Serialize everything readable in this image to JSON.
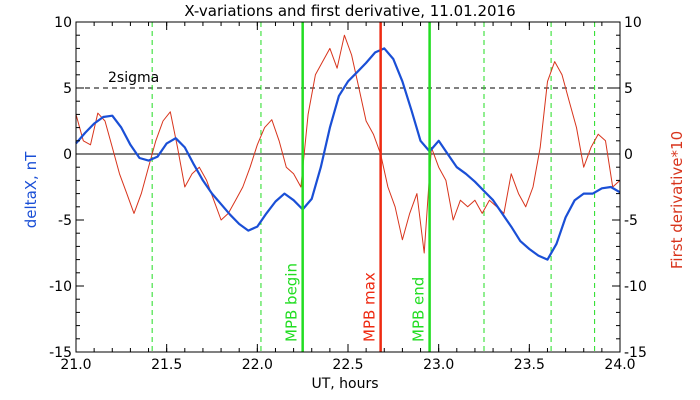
{
  "chart_data": {
    "type": "line",
    "title": "X-variations and first derivative, 11.01.2016",
    "xlabel": "UT, hours",
    "ylabel_left": "deltaX, nT",
    "ylabel_right": "First derivative*10",
    "xlim": [
      21.0,
      24.0
    ],
    "ylim": [
      -15,
      10
    ],
    "x_ticks": [
      21.0,
      21.5,
      22.0,
      22.5,
      23.0,
      23.5,
      24.0
    ],
    "x_tick_labels": [
      "21.0",
      "21.5",
      "22.0",
      "22.5",
      "23.0",
      "23.5",
      "24.0"
    ],
    "y_ticks": [
      -15,
      -10,
      -5,
      0,
      5,
      10
    ],
    "y_tick_labels": [
      "-15",
      "-10",
      "-5",
      "0",
      "5",
      "10"
    ],
    "colors": {
      "deltaX": "#1a4fd6",
      "derivative": "#d8341c",
      "mpb": "#22dd22",
      "max": "#ee2a12",
      "threshold": "#000000"
    },
    "threshold": {
      "label": "2sigma",
      "value": 5
    },
    "dashed_verticals": [
      21.42,
      22.02,
      23.25,
      23.62,
      23.86
    ],
    "markers": [
      {
        "label": "MPB begin",
        "x": 22.25,
        "color": "#22dd22"
      },
      {
        "label": "MPB max",
        "x": 22.68,
        "color": "#ee2a12"
      },
      {
        "label": "MPB end",
        "x": 22.95,
        "color": "#22dd22"
      }
    ],
    "series": [
      {
        "key": "deltaX",
        "x": [
          21.0,
          21.05,
          21.1,
          21.15,
          21.2,
          21.25,
          21.3,
          21.35,
          21.4,
          21.45,
          21.5,
          21.55,
          21.6,
          21.65,
          21.7,
          21.75,
          21.8,
          21.85,
          21.9,
          21.95,
          22.0,
          22.05,
          22.1,
          22.15,
          22.2,
          22.25,
          22.3,
          22.35,
          22.4,
          22.45,
          22.5,
          22.55,
          22.6,
          22.65,
          22.7,
          22.75,
          22.8,
          22.85,
          22.9,
          22.95,
          23.0,
          23.05,
          23.1,
          23.15,
          23.2,
          23.25,
          23.3,
          23.35,
          23.4,
          23.45,
          23.5,
          23.55,
          23.6,
          23.65,
          23.7,
          23.75,
          23.8,
          23.85,
          23.9,
          23.95,
          24.0
        ],
        "values": [
          0.8,
          1.6,
          2.3,
          2.8,
          2.9,
          2.0,
          0.7,
          -0.3,
          -0.5,
          -0.2,
          0.8,
          1.2,
          0.5,
          -0.8,
          -2.0,
          -3.0,
          -3.8,
          -4.6,
          -5.3,
          -5.8,
          -5.5,
          -4.5,
          -3.6,
          -3.0,
          -3.5,
          -4.2,
          -3.4,
          -1.0,
          2.0,
          4.4,
          5.5,
          6.2,
          6.9,
          7.7,
          8.0,
          7.2,
          5.5,
          3.3,
          1.0,
          0.2,
          1.0,
          0.0,
          -1.0,
          -1.5,
          -2.1,
          -2.8,
          -3.5,
          -4.5,
          -5.5,
          -6.6,
          -7.2,
          -7.7,
          -8.0,
          -6.8,
          -4.8,
          -3.5,
          -3.0,
          -3.0,
          -2.6,
          -2.5,
          -2.9
        ]
      },
      {
        "key": "derivative",
        "x": [
          21.0,
          21.04,
          21.08,
          21.12,
          21.16,
          21.2,
          21.24,
          21.28,
          21.32,
          21.36,
          21.4,
          21.44,
          21.48,
          21.52,
          21.56,
          21.6,
          21.64,
          21.68,
          21.72,
          21.76,
          21.8,
          21.84,
          21.88,
          21.92,
          21.96,
          22.0,
          22.04,
          22.08,
          22.12,
          22.16,
          22.2,
          22.24,
          22.28,
          22.32,
          22.36,
          22.4,
          22.44,
          22.48,
          22.52,
          22.56,
          22.6,
          22.64,
          22.68,
          22.72,
          22.76,
          22.8,
          22.84,
          22.88,
          22.92,
          22.96,
          23.0,
          23.04,
          23.08,
          23.12,
          23.16,
          23.2,
          23.24,
          23.28,
          23.32,
          23.36,
          23.4,
          23.44,
          23.48,
          23.52,
          23.56,
          23.6,
          23.64,
          23.68,
          23.72,
          23.76,
          23.8,
          23.84,
          23.88,
          23.92,
          23.96,
          24.0
        ],
        "values": [
          3.0,
          1.0,
          0.7,
          3.1,
          2.5,
          0.5,
          -1.5,
          -3.0,
          -4.5,
          -3.0,
          -1.0,
          1.0,
          2.5,
          3.2,
          0.5,
          -2.5,
          -1.5,
          -1.0,
          -2.0,
          -3.5,
          -5.0,
          -4.5,
          -3.5,
          -2.5,
          -1.0,
          0.7,
          2.0,
          2.6,
          1.0,
          -1.0,
          -1.5,
          -2.5,
          3.0,
          6.0,
          7.0,
          8.0,
          6.5,
          9.0,
          7.5,
          5.0,
          2.5,
          1.5,
          0.0,
          -2.5,
          -4.0,
          -6.5,
          -4.5,
          -3.0,
          -7.5,
          0.5,
          -1.0,
          -2.0,
          -5.0,
          -3.5,
          -4.0,
          -3.5,
          -4.5,
          -3.5,
          -4.0,
          -4.5,
          -1.5,
          -3.0,
          -4.0,
          -2.5,
          0.5,
          5.5,
          7.0,
          6.0,
          4.0,
          2.0,
          -1.0,
          0.5,
          1.5,
          1.0,
          -2.5,
          -2.0
        ]
      }
    ]
  }
}
